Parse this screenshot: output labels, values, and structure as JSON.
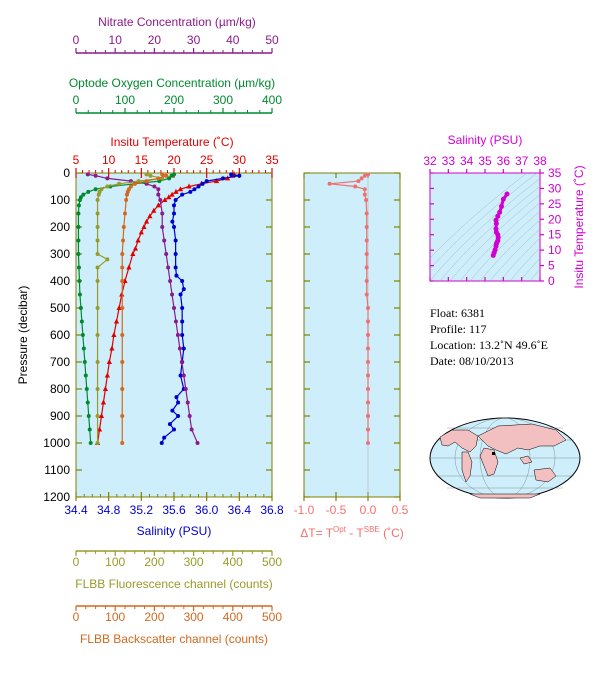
{
  "info": {
    "float": "Float:  6381",
    "profile": "Profile:  117",
    "location": "Location:  13.2˚N  49.6˚E",
    "date": "Date:  08/10/2013"
  },
  "footer_text": "",
  "colors": {
    "panel_bg": "#cdeefa",
    "axis": "#808000",
    "temperature": "#e00000",
    "salinity": "#0000cc",
    "nitrate": "#8b1a8b",
    "oxygen": "#008a2e",
    "fluorescence": "#9a9a2a",
    "backscatter": "#d2691e",
    "delta_t": "#f07070",
    "ts_magenta": "#d000d0",
    "land": "#f2c0c0",
    "ocean": "#cdeefa"
  },
  "chart_data": [
    {
      "type": "line",
      "panel": "main profiles",
      "ylabel": "Pressure (decibar)",
      "ylim": [
        1200,
        0
      ],
      "yticks": [
        "0",
        "100",
        "200",
        "300",
        "400",
        "500",
        "600",
        "700",
        "800",
        "900",
        "1000",
        "1100",
        "1200"
      ],
      "grid": false,
      "axes": {
        "salinity": {
          "label": "Salinity (PSU)",
          "range": [
            34.4,
            36.8
          ],
          "ticks": [
            "34.4",
            "34.8",
            "35.2",
            "35.6",
            "36.0",
            "36.4",
            "36.8"
          ],
          "position": "bottom"
        },
        "temperature": {
          "label": "Insitu Temperature (˚C)",
          "range": [
            5,
            35
          ],
          "ticks": [
            "5",
            "10",
            "15",
            "20",
            "25",
            "30",
            "35"
          ],
          "position": "top"
        },
        "oxygen": {
          "label": "Optode Oxygen Concentration (µm/kg)",
          "range": [
            0,
            400
          ],
          "ticks": [
            "0",
            "100",
            "200",
            "300",
            "400"
          ],
          "position": "top"
        },
        "nitrate": {
          "label": "Nitrate Concentration (µm/kg)",
          "range": [
            0,
            50
          ],
          "ticks": [
            "0",
            "10",
            "20",
            "30",
            "40",
            "50"
          ],
          "position": "top"
        },
        "fluorescence": {
          "label": "FLBB Fluorescence channel (counts)",
          "range": [
            0,
            500
          ],
          "ticks": [
            "0",
            "100",
            "200",
            "300",
            "400",
            "500"
          ],
          "position": "bottom"
        },
        "backscatter": {
          "label": "FLBB Backscatter channel (counts)",
          "range": [
            0,
            500
          ],
          "ticks": [
            "0",
            "100",
            "200",
            "300",
            "400",
            "500"
          ],
          "position": "bottom"
        }
      },
      "series": [
        {
          "key": "temperature",
          "axis": "temperature",
          "marker": "triangle",
          "pressure": [
            5,
            10,
            20,
            30,
            40,
            50,
            60,
            70,
            80,
            90,
            100,
            120,
            140,
            160,
            180,
            200,
            220,
            250,
            280,
            300,
            350,
            400,
            450,
            500,
            550,
            600,
            650,
            700,
            750,
            800,
            850,
            900,
            950,
            1000
          ],
          "values": [
            29.2,
            29.0,
            28.2,
            26.5,
            24.2,
            22.3,
            21.0,
            20.3,
            19.7,
            19.2,
            18.6,
            17.6,
            16.9,
            16.3,
            15.8,
            15.4,
            15.0,
            14.5,
            14.1,
            13.7,
            13.1,
            12.5,
            12.0,
            11.6,
            11.2,
            10.8,
            10.5,
            10.1,
            9.8,
            9.5,
            9.2,
            8.9,
            8.6,
            8.3
          ]
        },
        {
          "key": "salinity",
          "axis": "salinity",
          "marker": "dot",
          "pressure": [
            5,
            10,
            20,
            30,
            40,
            50,
            60,
            70,
            80,
            100,
            120,
            150,
            180,
            200,
            250,
            300,
            350,
            380,
            400,
            430,
            450,
            500,
            550,
            600,
            650,
            700,
            750,
            800,
            830,
            850,
            880,
            900,
            930,
            950,
            980,
            1000
          ],
          "values": [
            36.3,
            36.4,
            36.2,
            36.0,
            35.95,
            35.9,
            35.85,
            35.8,
            35.7,
            35.62,
            35.6,
            35.6,
            35.58,
            35.6,
            35.62,
            35.62,
            35.62,
            35.63,
            35.7,
            35.72,
            35.68,
            35.7,
            35.7,
            35.7,
            35.72,
            35.7,
            35.68,
            35.72,
            35.63,
            35.65,
            35.58,
            35.65,
            35.55,
            35.6,
            35.48,
            35.45
          ]
        },
        {
          "key": "nitrate",
          "axis": "nitrate",
          "marker": "dot",
          "pressure": [
            5,
            10,
            20,
            30,
            40,
            50,
            60,
            80,
            100,
            150,
            200,
            250,
            300,
            350,
            400,
            450,
            500,
            550,
            600,
            650,
            700,
            750,
            800,
            850,
            900,
            950,
            1000
          ],
          "values": [
            3,
            5,
            8,
            14,
            18,
            20,
            21,
            21,
            21.5,
            22,
            22,
            22.5,
            23,
            23.5,
            24,
            24.5,
            25,
            25.5,
            26,
            26.5,
            27,
            27.5,
            28,
            28.5,
            29,
            29.5,
            31
          ]
        },
        {
          "key": "oxygen",
          "axis": "oxygen",
          "marker": "dot",
          "pressure": [
            5,
            10,
            20,
            30,
            40,
            50,
            60,
            70,
            80,
            90,
            100,
            120,
            150,
            200,
            250,
            300,
            350,
            400,
            450,
            500,
            550,
            600,
            650,
            700,
            750,
            800,
            850,
            900,
            950,
            1000
          ],
          "values": [
            200,
            195,
            190,
            170,
            120,
            70,
            40,
            25,
            15,
            10,
            8,
            6,
            5,
            5,
            5,
            5,
            6,
            7,
            8,
            10,
            12,
            14,
            16,
            18,
            20,
            22,
            24,
            26,
            28,
            30
          ]
        },
        {
          "key": "fluorescence",
          "axis": "fluorescence",
          "marker": "dot",
          "pressure": [
            5,
            10,
            20,
            30,
            40,
            50,
            60,
            70,
            80,
            100,
            150,
            200,
            250,
            300,
            320,
            350,
            400,
            500,
            600,
            700,
            800,
            900,
            1000
          ],
          "values": [
            180,
            190,
            220,
            160,
            110,
            80,
            65,
            60,
            58,
            55,
            55,
            55,
            55,
            55,
            80,
            55,
            55,
            55,
            55,
            55,
            55,
            55,
            55
          ]
        },
        {
          "key": "backscatter",
          "axis": "backscatter",
          "marker": "dot",
          "pressure": [
            5,
            10,
            20,
            30,
            40,
            50,
            60,
            70,
            80,
            100,
            150,
            200,
            250,
            300,
            350,
            400,
            500,
            600,
            700,
            800,
            900,
            1000
          ],
          "values": [
            220,
            230,
            210,
            180,
            150,
            140,
            135,
            132,
            130,
            128,
            125,
            122,
            120,
            118,
            118,
            118,
            118,
            118,
            118,
            118,
            118,
            118
          ]
        }
      ]
    },
    {
      "type": "line",
      "panel": "delta T",
      "xlabel": "ΔT= T^Opt - T^SBE (˚C)",
      "xlim": [
        -1.0,
        0.5
      ],
      "xticks": [
        "-1.0",
        "-0.5",
        "0.0",
        "0.5"
      ],
      "ylim": [
        1200,
        0
      ],
      "series": [
        {
          "key": "delta_t",
          "pressure": [
            5,
            10,
            20,
            30,
            40,
            50,
            60,
            80,
            100,
            150,
            200,
            250,
            300,
            350,
            400,
            450,
            500,
            550,
            600,
            650,
            700,
            750,
            800,
            850,
            900,
            950,
            1000
          ],
          "values": [
            0,
            -0.05,
            -0.1,
            -0.15,
            -0.6,
            -0.2,
            -0.05,
            -0.05,
            -0.03,
            -0.02,
            -0.02,
            -0.02,
            -0.02,
            -0.02,
            -0.02,
            -0.02,
            0,
            0,
            0,
            0,
            0,
            0,
            0,
            0,
            0,
            0,
            0
          ]
        }
      ]
    },
    {
      "type": "scatter",
      "panel": "T-S diagram",
      "xlabel": "Salinity (PSU)",
      "ylabel": "Insitu Temperature (˚C)",
      "xlim": [
        32,
        38
      ],
      "ylim": [
        0,
        35
      ],
      "xticks": [
        "32",
        "33",
        "34",
        "35",
        "36",
        "37",
        "38"
      ],
      "yticks": [
        "0",
        "5",
        "10",
        "15",
        "20",
        "25",
        "30",
        "35"
      ],
      "points": {
        "x": [
          35.45,
          35.5,
          35.55,
          35.6,
          35.62,
          35.65,
          35.7,
          35.72,
          35.7,
          35.62,
          35.6,
          35.62,
          35.6,
          35.7,
          35.8,
          35.9,
          36.0,
          36.2
        ],
        "y": [
          8.3,
          9.2,
          10.1,
          11.2,
          12.0,
          12.5,
          13.1,
          14.1,
          15.0,
          15.8,
          16.9,
          18.6,
          19.7,
          21.0,
          22.3,
          24.2,
          26.5,
          28.2
        ]
      }
    }
  ]
}
